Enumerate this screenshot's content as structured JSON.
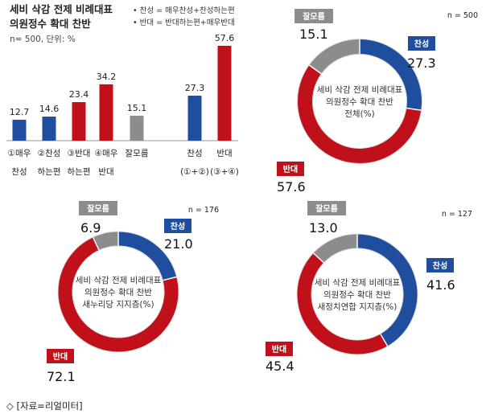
{
  "source": "◇ [자료=리얼미터]",
  "colors": {
    "favor": "#1F4E9E",
    "oppose": "#C0111A",
    "unknown": "#8C8C8C"
  },
  "chart_data": [
    {
      "type": "bar",
      "title_lines": [
        "세비 삭감 전제 비례대표",
        "의원정수 확대 찬반"
      ],
      "subtitle": "n= 500, 단위: %",
      "notes": [
        "• 찬성 = 매우찬성+찬성하는편",
        "• 반대 = 반대하는편+매우반대"
      ],
      "ylim": [
        0,
        60
      ],
      "categories": [
        {
          "l1": "①매우",
          "l2": "찬성"
        },
        {
          "l1": "②찬성",
          "l2": "하는편"
        },
        {
          "l1": "③반대",
          "l2": "하는편"
        },
        {
          "l1": "④매우",
          "l2": "반대"
        },
        {
          "l1": "잘모름",
          "l2": ""
        },
        {
          "l1": "찬성",
          "l2": "(①+②)"
        },
        {
          "l1": "반대",
          "l2": "(③+④)"
        }
      ],
      "values": [
        12.7,
        14.6,
        23.4,
        34.2,
        15.1,
        27.3,
        57.6
      ],
      "labels": [
        "12.7",
        "14.6",
        "23.4",
        "34.2",
        "15.1",
        "27.3",
        "57.6"
      ],
      "colors": [
        "#1F4E9E",
        "#1F4E9E",
        "#C0111A",
        "#C0111A",
        "#8C8C8C",
        "#1F4E9E",
        "#C0111A"
      ]
    },
    {
      "type": "pie",
      "n": "n = 500",
      "center_lines": [
        "세비 삭감 전제 비례대표",
        "의원정수 확대 찬반",
        "전체(%)"
      ],
      "slices": [
        {
          "name": "찬성",
          "value": 27.3,
          "label": "27.3",
          "color": "#1F4E9E"
        },
        {
          "name": "반대",
          "value": 57.6,
          "label": "57.6",
          "color": "#C0111A"
        },
        {
          "name": "잘모름",
          "value": 15.1,
          "label": "15.1",
          "color": "#8C8C8C"
        }
      ]
    },
    {
      "type": "pie",
      "n": "n = 176",
      "center_lines": [
        "세비 삭감 전제 비례대표",
        "의원정수 확대 찬반",
        "새누리당 지지층(%)"
      ],
      "slices": [
        {
          "name": "찬성",
          "value": 21.0,
          "label": "21.0",
          "color": "#1F4E9E"
        },
        {
          "name": "반대",
          "value": 72.1,
          "label": "72.1",
          "color": "#C0111A"
        },
        {
          "name": "잘모름",
          "value": 6.9,
          "label": "6.9",
          "color": "#8C8C8C"
        }
      ]
    },
    {
      "type": "pie",
      "n": "n = 127",
      "center_lines": [
        "세비 삭감 전제 비례대표",
        "의원정수 확대 찬반",
        "새정치연합 지지층(%)"
      ],
      "slices": [
        {
          "name": "찬성",
          "value": 41.6,
          "label": "41.6",
          "color": "#1F4E9E"
        },
        {
          "name": "반대",
          "value": 45.4,
          "label": "45.4",
          "color": "#C0111A"
        },
        {
          "name": "잘모름",
          "value": 13.0,
          "label": "13.0",
          "color": "#8C8C8C"
        }
      ]
    }
  ]
}
